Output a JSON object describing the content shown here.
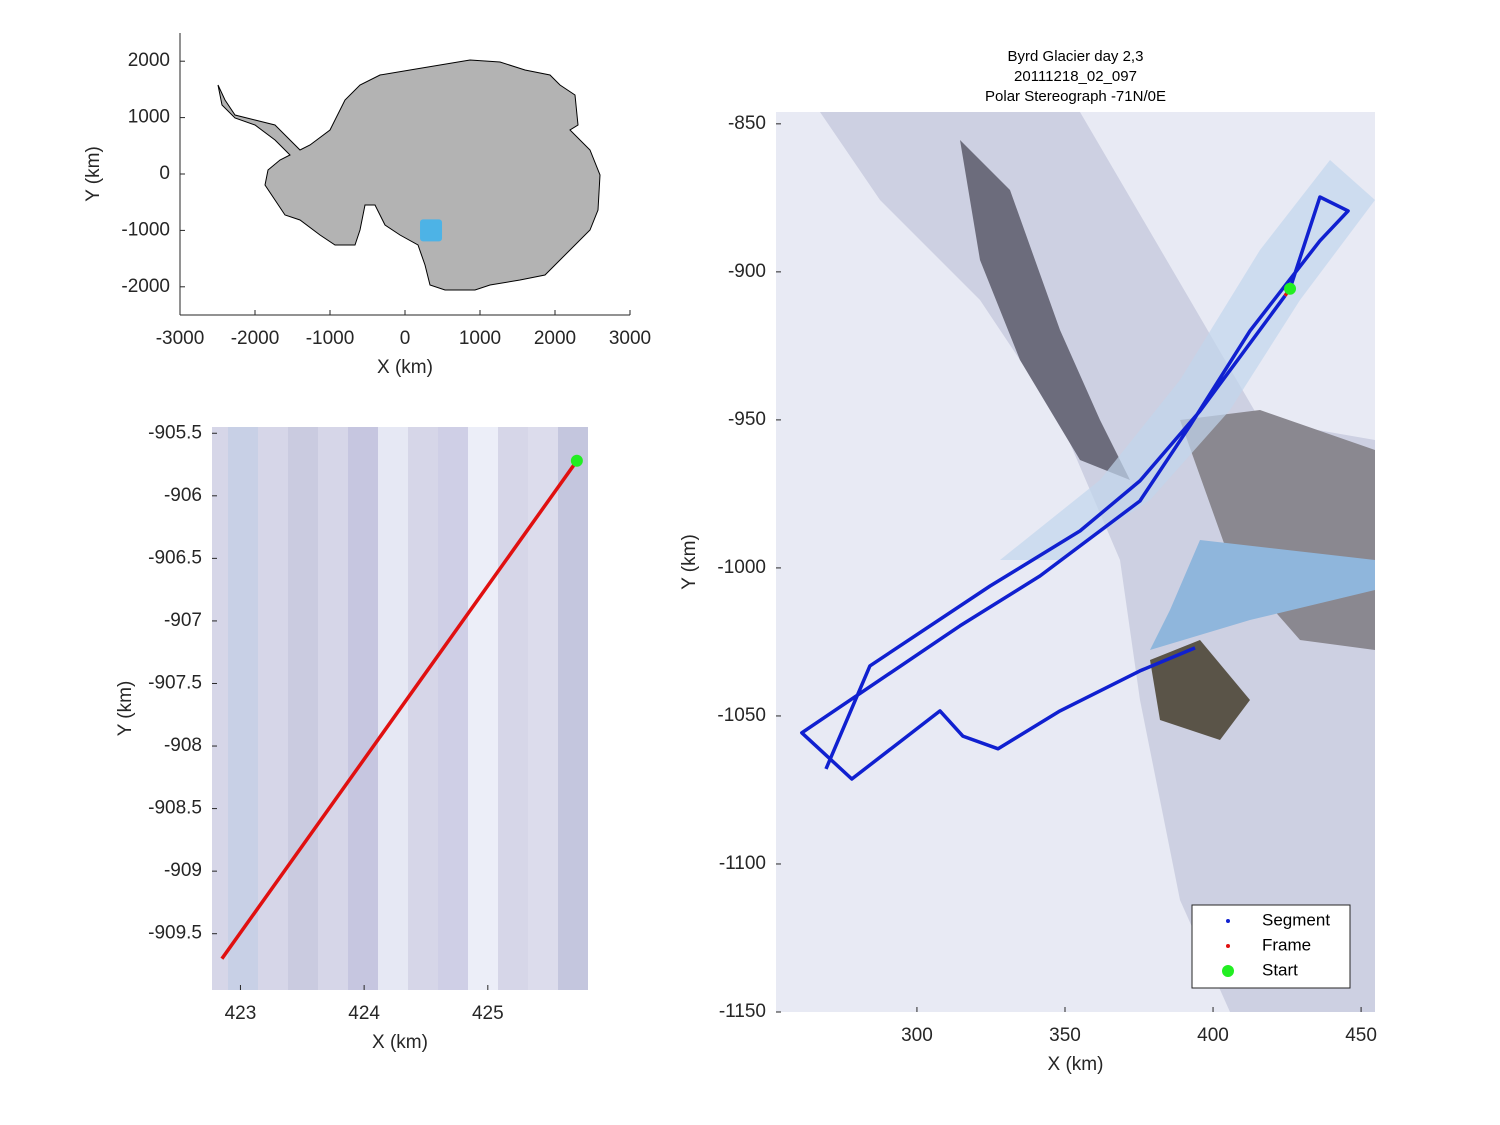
{
  "chart_data": [
    {
      "type": "scatter",
      "xlabel": "X (km)",
      "ylabel": "Y (km)",
      "xlim": [
        -3000,
        3000
      ],
      "ylim": [
        -2500,
        2500
      ],
      "xticks": [
        -3000,
        -2000,
        -1000,
        0,
        1000,
        2000,
        3000
      ],
      "yticks": [
        -2000,
        -1000,
        0,
        1000,
        2000
      ],
      "axis_lines": true,
      "series": [
        {
          "color": "#4db3e6",
          "mode": "marker",
          "marker": "square",
          "x": [
            347
          ],
          "values": [
            -1000
          ]
        }
      ]
    },
    {
      "type": "line",
      "xlabel": "X (km)",
      "ylabel": "Y (km)",
      "xlim": [
        422.77,
        425.81
      ],
      "ylim": [
        -909.95,
        -905.45
      ],
      "xticks": [
        423,
        424,
        425
      ],
      "yticks": [
        -909.5,
        -909,
        -908.5,
        -908,
        -907.5,
        -907,
        -906.5,
        -906,
        -905.5
      ],
      "series": [
        {
          "color": "#e01010",
          "mode": "line",
          "x": [
            422.85,
            425.72
          ],
          "values": [
            -909.7,
            -905.72
          ]
        },
        {
          "color": "#22ee22",
          "mode": "marker",
          "marker": "circle",
          "x": [
            425.72
          ],
          "values": [
            -905.72
          ]
        }
      ]
    },
    {
      "type": "line",
      "title": [
        "Byrd Glacier day 2,3",
        "20111218_02_097",
        "Polar Stereograph -71N/0E"
      ],
      "xlabel": "X (km)",
      "ylabel": "Y (km)",
      "xlim": [
        252.4,
        454.7
      ],
      "ylim": [
        -1150,
        -846
      ],
      "xticks": [
        300,
        350,
        400,
        450
      ],
      "yticks": [
        -1150,
        -1100,
        -1050,
        -1000,
        -950,
        -900,
        -850
      ],
      "legend": "southeast",
      "series": [
        {
          "name": "Segment",
          "color": "#1020d0",
          "mode": "line",
          "x": [
            426.0,
            436.1,
            445.6,
            436.1,
            412.5,
            392.2,
            375.3,
            341.6,
            314.5,
            261.1,
            278.0,
            307.8,
            315.5,
            327.4,
            348.3,
            375.3,
            393.9,
            null,
            424.3,
            395.6,
            375.3,
            355.1,
            324.7,
            284.1,
            269.3
          ],
          "values": [
            -905.7,
            -874.7,
            -879.4,
            -889.5,
            -919.9,
            -952.0,
            -977.4,
            -1002.7,
            -1019.6,
            -1055.7,
            -1071.3,
            -1048.3,
            -1056.8,
            -1061.1,
            -1048.3,
            -1034.8,
            -1027.0,
            null,
            -908.1,
            -947.0,
            -970.6,
            -987.5,
            -1006.1,
            -1033.1,
            -1067.9
          ]
        },
        {
          "name": "Frame",
          "color": "#e01010",
          "mode": "line",
          "x": [
            424.3,
            426.0
          ],
          "values": [
            -908.1,
            -905.7
          ]
        },
        {
          "name": "Start",
          "color": "#22ee22",
          "mode": "marker",
          "marker": "circle",
          "x": [
            426.0
          ],
          "values": [
            -905.7
          ]
        }
      ]
    }
  ]
}
